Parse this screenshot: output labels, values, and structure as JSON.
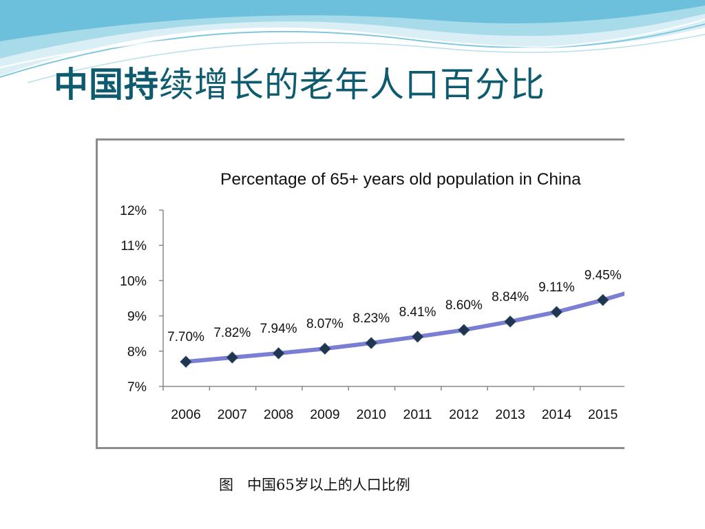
{
  "slide": {
    "title_bold": "中国持",
    "title_rest": "续增长的老年人口百分比",
    "caption": "图   中国65岁以上的人口比例"
  },
  "colors": {
    "title": "#0e5a6e",
    "series_line": "#7b7fd4",
    "marker": "#1f3550",
    "frame": "#8c8c8c",
    "wave_light": "#cde9f2",
    "wave_mid": "#9ad3e6",
    "wave_dark": "#5bb8d6"
  },
  "chart_data": {
    "type": "line",
    "title": "Percentage of 65+ years old population in China",
    "xlabel": "",
    "ylabel": "",
    "categories": [
      "2006",
      "2007",
      "2008",
      "2009",
      "2010",
      "2011",
      "2012",
      "2013",
      "2014",
      "2015"
    ],
    "values": [
      7.7,
      7.82,
      7.94,
      8.07,
      8.23,
      8.41,
      8.6,
      8.84,
      9.11,
      9.45
    ],
    "value_labels": [
      "7.70%",
      "7.82%",
      "7.94%",
      "8.07%",
      "8.23%",
      "8.41%",
      "8.60%",
      "8.84%",
      "9.11%",
      "9.45%"
    ],
    "y_ticks": [
      "12%",
      "11%",
      "10%",
      "9%",
      "8%",
      "7%"
    ],
    "y_tick_values": [
      12,
      11,
      10,
      9,
      8,
      7
    ],
    "ylim": [
      7,
      12
    ],
    "grid": false,
    "legend": "none",
    "marker": "diamond"
  }
}
